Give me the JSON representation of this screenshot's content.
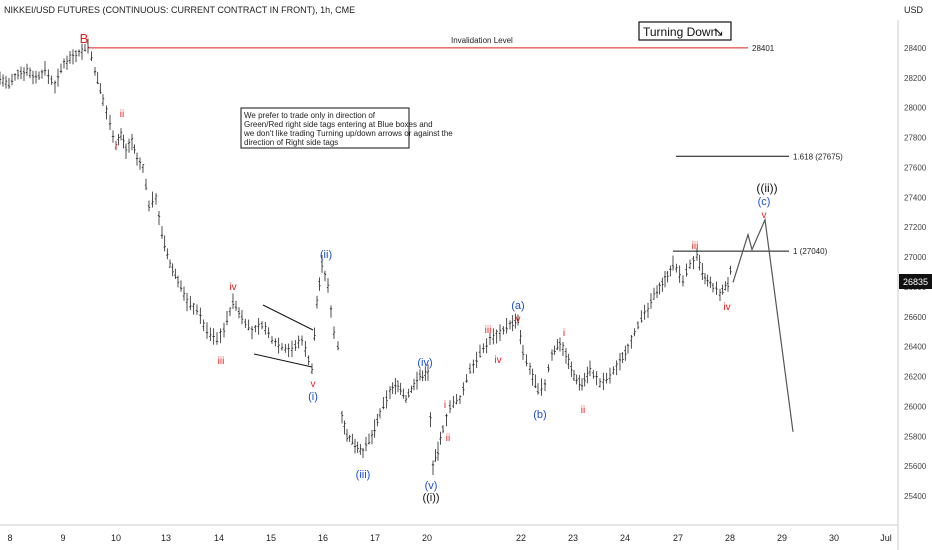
{
  "chart_data": {
    "type": "ohlc",
    "title": "NIKKEI/USD FUTURES (CONTINUOUS: CURRENT CONTRACT IN FRONT), 1h, CME",
    "currency": "USD",
    "ylim": [
      25300,
      28800
    ],
    "yticks": [
      25400,
      25600,
      25800,
      26000,
      26200,
      26400,
      26600,
      26800,
      27000,
      27200,
      27400,
      27600,
      27800,
      28000,
      28200,
      28400
    ],
    "xticks": [
      "8",
      "9",
      "10",
      "13",
      "14",
      "15",
      "16",
      "17",
      "20",
      "22",
      "23",
      "24",
      "27",
      "28",
      "29",
      "30",
      "Jul"
    ],
    "last_price": "26835",
    "price_path": [
      [
        0,
        28200
      ],
      [
        9,
        28150
      ],
      [
        18,
        28230
      ],
      [
        27,
        28250
      ],
      [
        36,
        28200
      ],
      [
        45,
        28250
      ],
      [
        55,
        28150
      ],
      [
        64,
        28300
      ],
      [
        73,
        28350
      ],
      [
        82,
        28380
      ],
      [
        88,
        28420
      ],
      [
        95,
        28250
      ],
      [
        103,
        28050
      ],
      [
        110,
        27900
      ],
      [
        116,
        27750
      ],
      [
        121,
        27820
      ],
      [
        126,
        27720
      ],
      [
        132,
        27780
      ],
      [
        137,
        27650
      ],
      [
        143,
        27600
      ],
      [
        149,
        27350
      ],
      [
        156,
        27400
      ],
      [
        162,
        27150
      ],
      [
        170,
        26950
      ],
      [
        178,
        26850
      ],
      [
        187,
        26700
      ],
      [
        197,
        26650
      ],
      [
        207,
        26500
      ],
      [
        217,
        26450
      ],
      [
        224,
        26520
      ],
      [
        233,
        26700
      ],
      [
        242,
        26600
      ],
      [
        252,
        26500
      ],
      [
        262,
        26550
      ],
      [
        272,
        26450
      ],
      [
        282,
        26400
      ],
      [
        292,
        26380
      ],
      [
        302,
        26450
      ],
      [
        312,
        26250
      ],
      [
        317,
        26700
      ],
      [
        322,
        26950
      ],
      [
        328,
        26800
      ],
      [
        334,
        26500
      ],
      [
        338,
        26400
      ],
      [
        342,
        25950
      ],
      [
        347,
        25800
      ],
      [
        355,
        25750
      ],
      [
        363,
        25700
      ],
      [
        372,
        25800
      ],
      [
        380,
        25950
      ],
      [
        390,
        26100
      ],
      [
        398,
        26150
      ],
      [
        406,
        26050
      ],
      [
        414,
        26150
      ],
      [
        420,
        26200
      ],
      [
        428,
        26230
      ],
      [
        433,
        25600
      ],
      [
        438,
        25700
      ],
      [
        443,
        25850
      ],
      [
        450,
        26000
      ],
      [
        460,
        26050
      ],
      [
        470,
        26250
      ],
      [
        480,
        26350
      ],
      [
        490,
        26450
      ],
      [
        500,
        26500
      ],
      [
        510,
        26550
      ],
      [
        518,
        26570
      ],
      [
        523,
        26350
      ],
      [
        530,
        26250
      ],
      [
        538,
        26100
      ],
      [
        545,
        26150
      ],
      [
        552,
        26350
      ],
      [
        560,
        26430
      ],
      [
        566,
        26350
      ],
      [
        574,
        26200
      ],
      [
        582,
        26150
      ],
      [
        590,
        26250
      ],
      [
        600,
        26150
      ],
      [
        610,
        26200
      ],
      [
        620,
        26300
      ],
      [
        628,
        26400
      ],
      [
        638,
        26550
      ],
      [
        648,
        26650
      ],
      [
        657,
        26780
      ],
      [
        665,
        26850
      ],
      [
        673,
        26950
      ],
      [
        683,
        26850
      ],
      [
        690,
        26950
      ],
      [
        697,
        27000
      ],
      [
        705,
        26850
      ],
      [
        713,
        26800
      ],
      [
        720,
        26750
      ],
      [
        728,
        26820
      ],
      [
        733,
        27000
      ]
    ],
    "projection_path": [
      [
        733,
        26830
      ],
      [
        748,
        27150
      ],
      [
        752,
        27050
      ],
      [
        765,
        27250
      ],
      [
        793,
        25830
      ]
    ],
    "levels": [
      {
        "label": "Invalidation Level",
        "value": "28401",
        "price": 28401
      },
      {
        "label": "1.618 (27675)",
        "price": 27675
      },
      {
        "label": "1 (27040)",
        "price": 27040
      }
    ],
    "wave_labels": [
      {
        "text": "B",
        "color": "#e01f1f"
      },
      {
        "text": "i",
        "color": "#e01f1f"
      },
      {
        "text": "ii",
        "color": "#e01f1f"
      },
      {
        "text": "iii",
        "color": "#e01f1f"
      },
      {
        "text": "iv",
        "color": "#e01f1f"
      },
      {
        "text": "v",
        "color": "#e01f1f"
      },
      {
        "text": "(i)",
        "color": "#1e4fc9"
      },
      {
        "text": "(ii)",
        "color": "#1e4fc9"
      },
      {
        "text": "(iii)",
        "color": "#1e4fc9"
      },
      {
        "text": "(iv)",
        "color": "#1e4fc9"
      },
      {
        "text": "(v)",
        "color": "#1e4fc9"
      },
      {
        "text": "((i))",
        "color": "#111111"
      },
      {
        "text": "i",
        "color": "#e01f1f"
      },
      {
        "text": "ii",
        "color": "#e01f1f"
      },
      {
        "text": "iii",
        "color": "#e01f1f"
      },
      {
        "text": "iv",
        "color": "#e01f1f"
      },
      {
        "text": "v",
        "color": "#e01f1f"
      },
      {
        "text": "(a)",
        "color": "#1e4fc9"
      },
      {
        "text": "(b)",
        "color": "#1e4fc9"
      },
      {
        "text": "i",
        "color": "#e01f1f"
      },
      {
        "text": "ii",
        "color": "#e01f1f"
      },
      {
        "text": "iii",
        "color": "#e01f1f"
      },
      {
        "text": "iv",
        "color": "#e01f1f"
      },
      {
        "text": "v",
        "color": "#e01f1f"
      },
      {
        "text": "(c)",
        "color": "#1e4fc9"
      },
      {
        "text": "((ii))",
        "color": "#111111"
      }
    ],
    "note": "We prefer to trade only in direction of Green/Red right side tags entering at Blue boxes and we don't like trading Turning up/down arrows or against the direction of Right side tags",
    "tag": "Turning Down",
    "tag_arrow": "↘"
  }
}
